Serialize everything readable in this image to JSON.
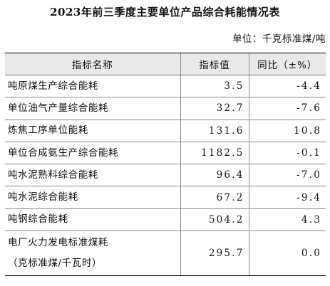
{
  "title": "2023年前三季度主要单位产品综合耗能情况表",
  "unit": "单位：千克标准煤/吨",
  "headers": {
    "name": "指标名称",
    "value": "指标值",
    "yoy": "同比（±%）"
  },
  "rows": [
    {
      "name": "吨原煤生产综合能耗",
      "value": "3.5",
      "yoy": "-4.4"
    },
    {
      "name": "单位油气产量综合能耗",
      "value": "32.7",
      "yoy": "-7.6"
    },
    {
      "name": "炼焦工序单位能耗",
      "value": "131.6",
      "yoy": "10.8"
    },
    {
      "name": "单位合成氨生产综合能耗",
      "value": "1182.5",
      "yoy": "-0.1"
    },
    {
      "name": "吨水泥熟料综合能耗",
      "value": "96.4",
      "yoy": "-7.0"
    },
    {
      "name": "吨水泥综合能耗",
      "value": "67.2",
      "yoy": "-9.4"
    },
    {
      "name": "吨钢综合能耗",
      "value": "504.2",
      "yoy": "4.3"
    }
  ],
  "last_row": {
    "name_line1": "电厂火力发电标准煤耗",
    "name_line2": "（克标准煤/千瓦时）",
    "value": "295.7",
    "yoy": "0.0"
  }
}
